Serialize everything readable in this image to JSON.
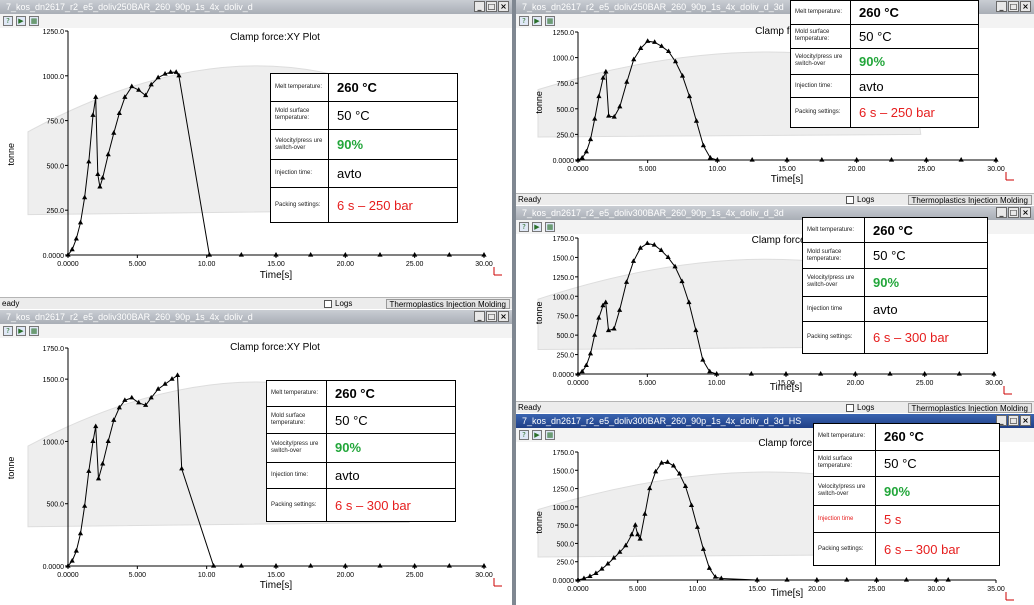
{
  "status": {
    "ready": "Ready",
    "logs": "Logs",
    "mode": "Thermoplastics Injection Molding",
    "ready_cut": "eady"
  },
  "xlabel": "Time[s]",
  "ylabel": "tonne",
  "axis_corner": "t",
  "colors": {
    "accent_green": "#22a63a",
    "accent_red": "#e61e1e",
    "titlebar_active": "#1f3f86",
    "titlebar_inactive": "#a9aeb6"
  },
  "toolbar_icons": [
    "select-icon",
    "animate-icon",
    "results-icon"
  ],
  "panes": [
    {
      "title": "7_kos_dn2617_r2_e5_doliv250BAR_260_90p_1s_4x_doliv_d",
      "active": false,
      "plot_title": "Clamp force:XY Plot",
      "info": {
        "melt_label": "Melt temperature:",
        "melt_value": "260 °C",
        "mold_label": "Mold surface temperature:",
        "mold_value": "50 °C",
        "vp_label": "Velocity/press ure switch-over",
        "vp_value": "90%",
        "inj_label": "Injection time:",
        "inj_value": "avto",
        "pack_label": "Packing settings:",
        "pack_value": "6 s – 250 bar"
      },
      "chart_data": {
        "type": "line",
        "xlim": [
          0,
          30
        ],
        "ylim": [
          0,
          1250
        ],
        "xticks": [
          "0.0000",
          "5.000",
          "10.00",
          "15.00",
          "20.00",
          "25.00",
          "30.00"
        ],
        "yticks": [
          "0.0000",
          "250.0",
          "500.0",
          "750.0",
          "1000.0",
          "1250.0"
        ],
        "x": [
          0.0,
          0.3,
          0.6,
          0.9,
          1.2,
          1.5,
          1.8,
          2.0,
          2.15,
          2.3,
          2.5,
          2.9,
          3.3,
          3.7,
          4.1,
          4.6,
          5.1,
          5.6,
          6.0,
          6.5,
          7.0,
          7.4,
          7.8,
          8.0,
          10.2,
          12.5,
          15.0,
          17.5,
          20.0,
          22.5,
          25.0,
          27.5,
          30.0
        ],
        "y": [
          0,
          30,
          90,
          180,
          320,
          520,
          780,
          880,
          450,
          380,
          430,
          560,
          680,
          790,
          880,
          940,
          920,
          890,
          950,
          990,
          1010,
          1020,
          1020,
          1000,
          0,
          0,
          0,
          0,
          0,
          0,
          0,
          0,
          0
        ]
      }
    },
    {
      "title": "7_kos_dn2617_r2_e5_doliv300BAR_260_90p_1s_4x_doliv_d",
      "active": false,
      "plot_title": "Clamp force:XY Plot",
      "info": {
        "melt_label": "Melt temperature:",
        "melt_value": "260 °C",
        "mold_label": "Mold surface temperature:",
        "mold_value": "50 °C",
        "vp_label": "Velocity/press ure switch-over",
        "vp_value": "90%",
        "inj_label": "Injection time:",
        "inj_value": "avto",
        "pack_label": "Packing settings:",
        "pack_value": "6 s – 300 bar"
      },
      "chart_data": {
        "type": "line",
        "xlim": [
          0,
          30
        ],
        "ylim": [
          0,
          1750
        ],
        "xticks": [
          "0.0000",
          "5.000",
          "10.00",
          "15.00",
          "20.00",
          "25.00",
          "30.00"
        ],
        "yticks": [
          "0.0000",
          "500.0",
          "1000.0",
          "1500.0",
          "1750.0"
        ],
        "x": [
          0.0,
          0.3,
          0.6,
          0.9,
          1.2,
          1.5,
          1.8,
          2.0,
          2.2,
          2.5,
          2.9,
          3.3,
          3.7,
          4.1,
          4.6,
          5.1,
          5.6,
          6.0,
          6.5,
          7.0,
          7.5,
          7.9,
          8.2,
          10.5,
          12.5,
          15.0,
          17.5,
          20.0,
          22.5,
          25.0,
          27.5,
          30.0
        ],
        "y": [
          0,
          40,
          120,
          260,
          480,
          760,
          1000,
          1120,
          700,
          820,
          1000,
          1170,
          1270,
          1330,
          1350,
          1310,
          1290,
          1350,
          1420,
          1460,
          1500,
          1530,
          780,
          0,
          0,
          0,
          0,
          0,
          0,
          0,
          0,
          0
        ]
      }
    },
    {
      "title": "7_kos_dn2617_r2_e5_doliv250BAR_260_90p_1s_4x_doliv_d_3d",
      "active": false,
      "plot_title": "Clamp force:XY Plot",
      "info": {
        "melt_label": "Melt temperature:",
        "melt_value": "260 °C",
        "mold_label": "Mold surface temperature:",
        "mold_value": "50 °C",
        "vp_label": "Velocity/press ure switch-over",
        "vp_value": "90%",
        "inj_label": "Injection time:",
        "inj_value": "avto",
        "pack_label": "Packing settings:",
        "pack_value": "6 s – 250 bar"
      },
      "chart_data": {
        "type": "line",
        "xlim": [
          0,
          30
        ],
        "ylim": [
          0,
          1250
        ],
        "xticks": [
          "0.0000",
          "5.000",
          "10.00",
          "15.00",
          "20.00",
          "25.00",
          "30.00"
        ],
        "yticks": [
          "0.0000",
          "250.0",
          "500.0",
          "750.0",
          "1000.0",
          "1250.0"
        ],
        "x": [
          0.0,
          0.3,
          0.6,
          0.9,
          1.2,
          1.5,
          1.8,
          2.0,
          2.2,
          2.6,
          3.0,
          3.5,
          4.0,
          4.5,
          5.0,
          5.5,
          6.0,
          6.5,
          7.0,
          7.5,
          8.0,
          8.5,
          9.0,
          9.5,
          10.0,
          12.5,
          15.0,
          17.5,
          20.0,
          22.5,
          25.0,
          27.5,
          30.0
        ],
        "y": [
          0,
          20,
          80,
          200,
          400,
          620,
          800,
          860,
          430,
          420,
          520,
          760,
          980,
          1090,
          1160,
          1150,
          1110,
          1060,
          960,
          820,
          620,
          380,
          140,
          20,
          0,
          0,
          0,
          0,
          0,
          0,
          0,
          0,
          0
        ]
      }
    },
    {
      "title": "7_kos_dn2617_r2_e5_doliv300BAR_260_90p_1s_4x_doliv_d_3d",
      "active": false,
      "plot_title": "Clamp force:",
      "info": {
        "melt_label": "Melt temperature:",
        "melt_value": "260 °C",
        "mold_label": "Mold surface temperature:",
        "mold_value": "50 °C",
        "vp_label": "Velocity/press ure switch-over",
        "vp_value": "90%",
        "inj_label": "Injection time",
        "inj_value": "avto",
        "pack_label": "Packing settings:",
        "pack_value": "6 s – 300 bar"
      },
      "chart_data": {
        "type": "line",
        "xlim": [
          0,
          30
        ],
        "ylim": [
          0,
          1750
        ],
        "xticks": [
          "0.0000",
          "5.000",
          "10.00",
          "15.00",
          "20.00",
          "25.00",
          "30.00"
        ],
        "yticks": [
          "0.0000",
          "250.0",
          "500.0",
          "750.0",
          "1000.0",
          "1250.0",
          "1500.0",
          "1750.0"
        ],
        "x": [
          0.0,
          0.3,
          0.6,
          0.9,
          1.2,
          1.5,
          1.8,
          2.0,
          2.2,
          2.6,
          3.0,
          3.5,
          4.0,
          4.5,
          5.0,
          5.5,
          6.0,
          6.5,
          7.0,
          7.5,
          8.0,
          8.5,
          9.0,
          9.5,
          10.0,
          12.5,
          15.0,
          17.5,
          20.0,
          22.5,
          25.0,
          27.5,
          30.0
        ],
        "y": [
          0,
          30,
          110,
          260,
          500,
          720,
          880,
          920,
          560,
          580,
          820,
          1180,
          1450,
          1620,
          1680,
          1660,
          1590,
          1500,
          1380,
          1190,
          920,
          560,
          180,
          30,
          0,
          0,
          0,
          0,
          0,
          0,
          0,
          0,
          0
        ]
      }
    },
    {
      "title": "7_kos_dn2617_r2_e5_doliv300BAR_260_90p_1s_4x_doliv_d_3d_HS",
      "active": true,
      "plot_title": "Clamp force:X",
      "info": {
        "melt_label": "Melt temperature:",
        "melt_value": "260 °C",
        "mold_label": "Mold surface temperature:",
        "mold_value": "50 °C",
        "vp_label": "Velocity/press ure switch-over",
        "vp_value": "90%",
        "inj_label": "Injection time",
        "inj_value": "5 s",
        "pack_label": "Packing settings:",
        "pack_value": "6 s – 300 bar"
      },
      "chart_data": {
        "type": "line",
        "xlim": [
          0,
          35
        ],
        "ylim": [
          0,
          1750
        ],
        "xticks": [
          "0.0000",
          "5.000",
          "10.00",
          "15.00",
          "20.00",
          "25.00",
          "30.00",
          "35.00"
        ],
        "yticks": [
          "0.0000",
          "250.0",
          "500.0",
          "750.0",
          "1000.0",
          "1250.0",
          "1500.0",
          "1750.0"
        ],
        "x": [
          0.0,
          0.5,
          1.0,
          1.5,
          2.0,
          2.5,
          3.0,
          3.5,
          4.0,
          4.5,
          4.8,
          5.0,
          5.2,
          5.6,
          6.0,
          6.5,
          7.0,
          7.5,
          8.0,
          8.5,
          9.0,
          9.5,
          10.0,
          10.5,
          11.0,
          11.5,
          12.0,
          15.0,
          17.5,
          20.0,
          22.5,
          25.0,
          27.5,
          30.0,
          31.0
        ],
        "y": [
          0,
          20,
          50,
          90,
          150,
          220,
          300,
          380,
          470,
          620,
          750,
          620,
          560,
          900,
          1250,
          1480,
          1600,
          1610,
          1560,
          1450,
          1280,
          1020,
          720,
          420,
          160,
          40,
          20,
          0,
          0,
          0,
          0,
          0,
          0,
          0,
          0
        ]
      }
    }
  ]
}
